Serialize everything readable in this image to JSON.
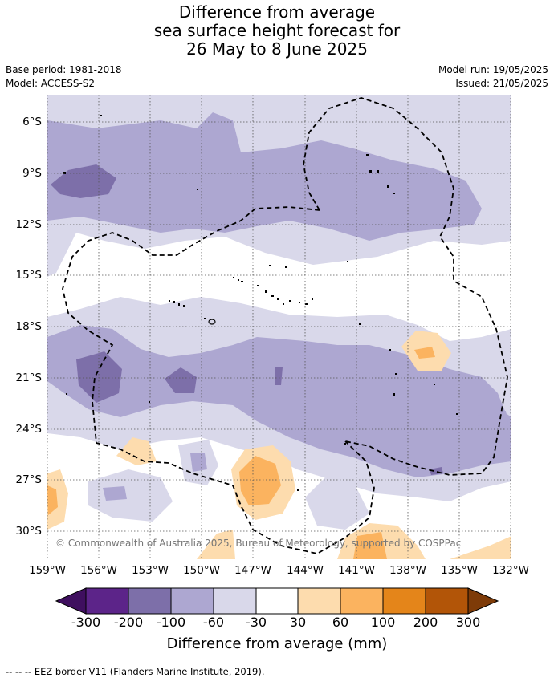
{
  "title": {
    "line1": "Difference from average",
    "line2": "sea surface height forecast for",
    "line3": "26 May to 8 June 2025"
  },
  "meta": {
    "base_period": "Base period: 1981-2018",
    "model": "Model: ACCESS-S2",
    "model_run": "Model run: 19/05/2025",
    "issued": "Issued: 21/05/2025"
  },
  "map": {
    "lat_labels": [
      "6°S",
      "9°S",
      "12°S",
      "15°S",
      "18°S",
      "21°S",
      "24°S",
      "27°S",
      "30°S"
    ],
    "lon_labels": [
      "159°W",
      "156°W",
      "153°W",
      "150°W",
      "147°W",
      "144°W",
      "141°W",
      "138°W",
      "135°W",
      "132°W"
    ],
    "copyright": "© Commonwealth of Australia 2025, Bureau of Meteorology, supported by COSPPac"
  },
  "colorbar": {
    "labels": [
      "-300",
      "-200",
      "-100",
      "-60",
      "-30",
      "30",
      "60",
      "100",
      "200",
      "300"
    ],
    "colors": {
      "under": "#3f0f5f",
      "n300_200": "#5c2489",
      "n200_100": "#7d6fa9",
      "n100_60": "#ada7d1",
      "n60_30": "#d9d8ea",
      "neutral": "#ffffff",
      "p30_60": "#fddcae",
      "p60_100": "#fbb35f",
      "p100_200": "#e4851a",
      "p200_300": "#b25508",
      "over": "#7e3b08"
    },
    "title": "Difference from average (mm)"
  },
  "footnote": "--  --  -- EEZ border V11 (Flanders Marine Institute, 2019)."
}
